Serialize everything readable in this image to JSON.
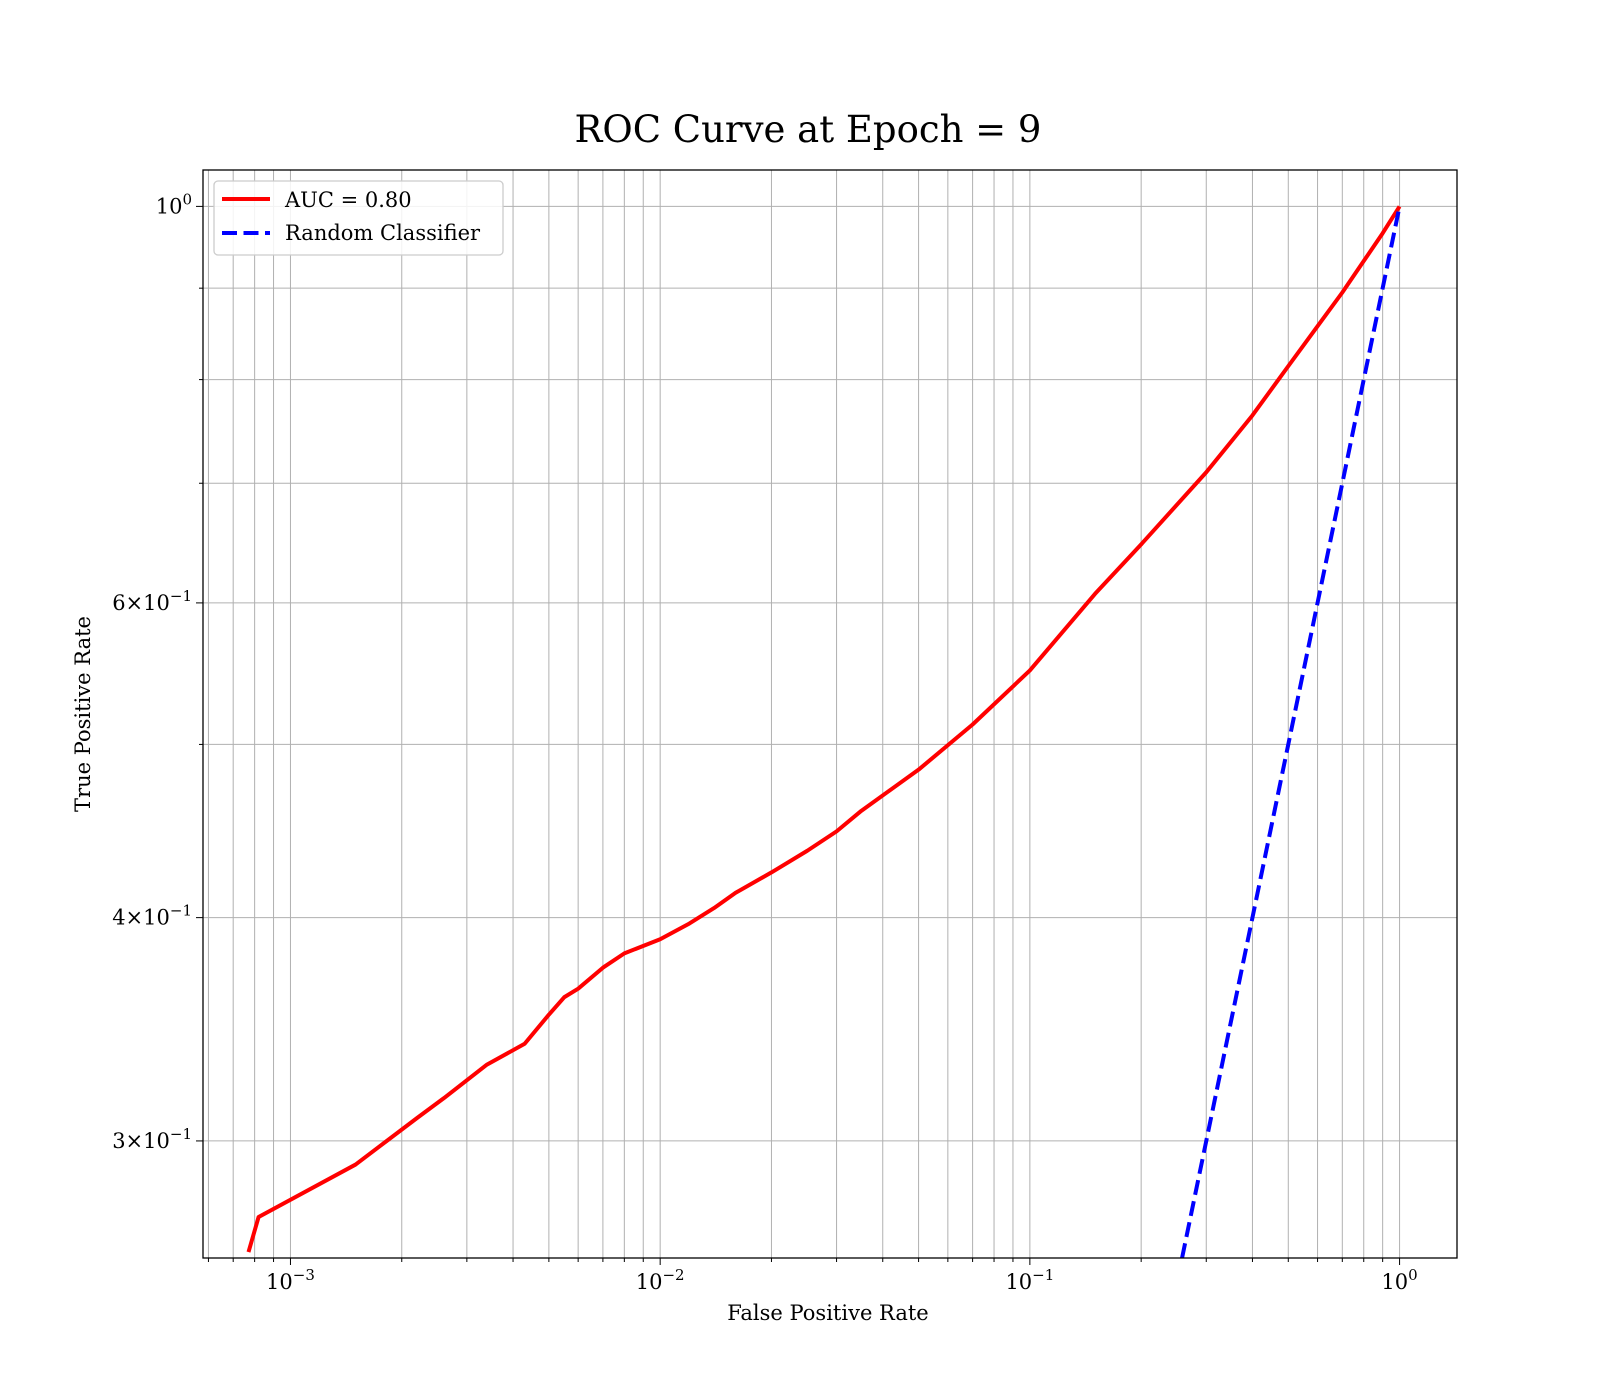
{
  "chart_data": {
    "type": "line",
    "title": "ROC Curve at Epoch = 9",
    "xlabel": "False Positive Rate",
    "ylabel": "True Positive Rate",
    "xscale": "log",
    "yscale": "log",
    "xlim": [
      0.00058,
      1.43
    ],
    "ylim": [
      0.258,
      1.048
    ],
    "grid": true,
    "legend": "top-left",
    "x_major_ticks": [
      {
        "value": 0.001,
        "base": "10",
        "exp": "−3"
      },
      {
        "value": 0.01,
        "base": "10",
        "exp": "−2"
      },
      {
        "value": 0.1,
        "base": "10",
        "exp": "−1"
      },
      {
        "value": 1,
        "base": "10",
        "exp": "0"
      }
    ],
    "y_ticks": [
      {
        "value": 1,
        "mant": "",
        "base": "10",
        "exp": "0"
      },
      {
        "value": 0.6,
        "mant": "6",
        "base": "10",
        "exp": "−1"
      },
      {
        "value": 0.4,
        "mant": "4",
        "base": "10",
        "exp": "−1"
      },
      {
        "value": 0.3,
        "mant": "3",
        "base": "10",
        "exp": "−1"
      }
    ],
    "y_minor_gridlines": [
      0.9,
      0.8,
      0.7,
      0.5
    ],
    "series": [
      {
        "name": "AUC = 0.80",
        "color": "#ff0000",
        "style": "solid",
        "x": [
          0.00077,
          0.00082,
          0.0015,
          0.0022,
          0.0026,
          0.0034,
          0.0043,
          0.005,
          0.0055,
          0.006,
          0.007,
          0.008,
          0.01,
          0.012,
          0.014,
          0.016,
          0.02,
          0.025,
          0.03,
          0.035,
          0.05,
          0.07,
          0.1,
          0.15,
          0.2,
          0.3,
          0.4,
          0.5,
          0.6,
          0.7,
          0.8,
          0.9,
          1.0
        ],
        "y": [
          0.26,
          0.272,
          0.291,
          0.309,
          0.317,
          0.331,
          0.34,
          0.353,
          0.361,
          0.365,
          0.375,
          0.382,
          0.389,
          0.397,
          0.405,
          0.413,
          0.424,
          0.436,
          0.447,
          0.459,
          0.484,
          0.513,
          0.55,
          0.607,
          0.647,
          0.71,
          0.764,
          0.814,
          0.857,
          0.895,
          0.932,
          0.966,
          1.0
        ]
      },
      {
        "name": "Random Classifier",
        "color": "#0000ff",
        "style": "dashed",
        "x": [
          0.258,
          0.3,
          0.4,
          0.5,
          0.6,
          0.7,
          0.8,
          0.9,
          1.0
        ],
        "y": [
          0.258,
          0.3,
          0.4,
          0.5,
          0.6,
          0.7,
          0.8,
          0.9,
          1.0
        ]
      }
    ]
  }
}
